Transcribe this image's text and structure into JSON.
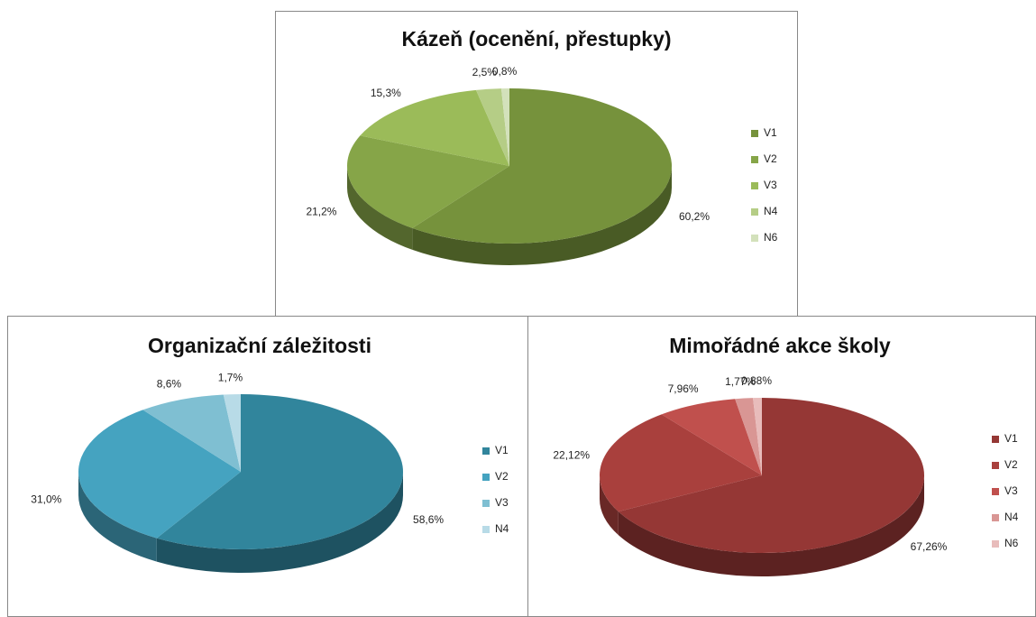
{
  "chart_data": [
    {
      "type": "pie",
      "title": "Kázeň (ocenění, přestupky)",
      "categories": [
        "V1",
        "V2",
        "V3",
        "N4",
        "N6"
      ],
      "values": [
        60.2,
        21.2,
        15.3,
        2.5,
        0.8
      ],
      "value_labels": [
        "60,2%",
        "21,2%",
        "15,3%",
        "2,5%",
        "0,8%"
      ],
      "colors": [
        "#76923c",
        "#86a548",
        "#9bbb59",
        "#b5cd86",
        "#d3e1bb"
      ]
    },
    {
      "type": "pie",
      "title": "Organizační záležitosti",
      "categories": [
        "V1",
        "V2",
        "V3",
        "N4"
      ],
      "values": [
        58.6,
        31.0,
        8.6,
        1.7
      ],
      "value_labels": [
        "58,6%",
        "31,0%",
        "8,6%",
        "1,7%"
      ],
      "colors": [
        "#31859c",
        "#45a3c0",
        "#7fbfd2",
        "#b8dbe7"
      ]
    },
    {
      "type": "pie",
      "title": "Mimořádné akce školy",
      "categories": [
        "V1",
        "V2",
        "V3",
        "N4",
        "N6"
      ],
      "values": [
        67.26,
        22.12,
        7.96,
        1.77,
        0.88
      ],
      "value_labels": [
        "67,26%",
        "22,12%",
        "7,96%",
        "1,77%",
        "0,88%"
      ],
      "colors": [
        "#953735",
        "#a9403d",
        "#c0504d",
        "#d99694",
        "#e8bcbb"
      ]
    }
  ]
}
